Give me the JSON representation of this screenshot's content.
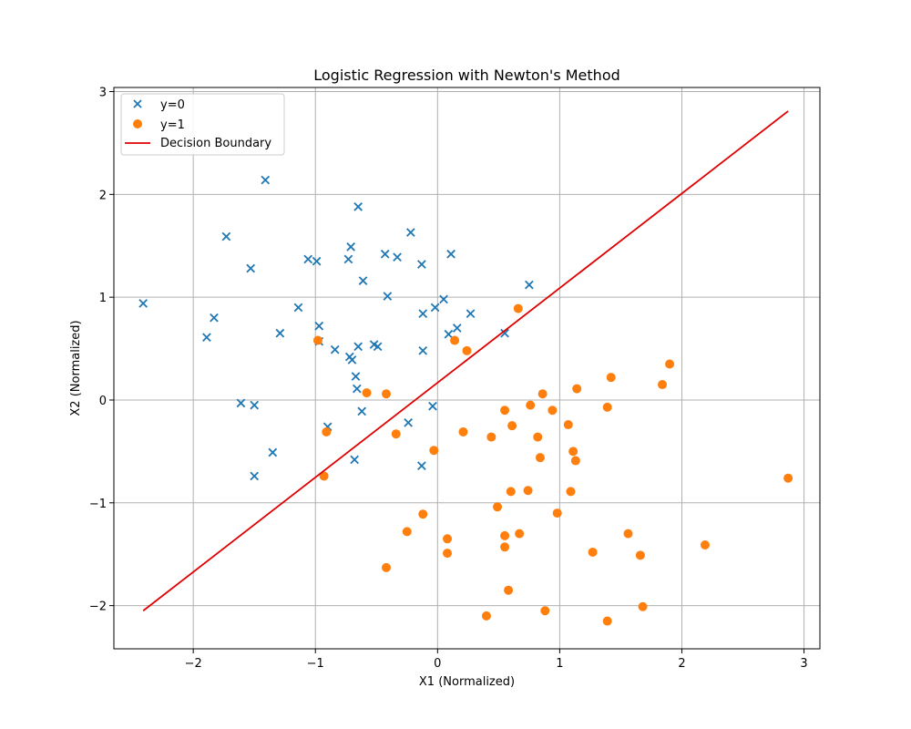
{
  "chart_data": {
    "type": "scatter",
    "title": "Logistic Regression with Newton's Method",
    "xlabel": "X1 (Normalized)",
    "ylabel": "X2 (Normalized)",
    "xlim": [
      -2.65,
      3.13
    ],
    "ylim": [
      -2.42,
      3.04
    ],
    "xticks": [
      -2,
      -1,
      0,
      1,
      2,
      3
    ],
    "xtick_labels": [
      "−2",
      "−1",
      "0",
      "1",
      "2",
      "3"
    ],
    "yticks": [
      -2,
      -1,
      0,
      1,
      2,
      3
    ],
    "ytick_labels": [
      "−2",
      "−1",
      "0",
      "1",
      "2",
      "3"
    ],
    "grid": true,
    "legend_position": "top-left",
    "series": [
      {
        "name": "y=0",
        "marker": "x",
        "color": "#1f77b4",
        "points": [
          [
            -2.41,
            0.94
          ],
          [
            -1.89,
            0.61
          ],
          [
            -1.83,
            0.8
          ],
          [
            -1.73,
            1.59
          ],
          [
            -1.61,
            -0.03
          ],
          [
            -1.53,
            1.28
          ],
          [
            -1.5,
            -0.05
          ],
          [
            -1.5,
            -0.74
          ],
          [
            -1.41,
            2.14
          ],
          [
            -1.35,
            -0.51
          ],
          [
            -1.29,
            0.65
          ],
          [
            -1.14,
            0.9
          ],
          [
            -1.06,
            1.37
          ],
          [
            -0.99,
            1.35
          ],
          [
            -0.97,
            0.72
          ],
          [
            -0.97,
            0.57
          ],
          [
            -0.9,
            -0.26
          ],
          [
            -0.84,
            0.49
          ],
          [
            -0.73,
            1.37
          ],
          [
            -0.72,
            0.42
          ],
          [
            -0.71,
            1.49
          ],
          [
            -0.7,
            0.39
          ],
          [
            -0.68,
            -0.58
          ],
          [
            -0.67,
            0.23
          ],
          [
            -0.66,
            0.11
          ],
          [
            -0.65,
            1.88
          ],
          [
            -0.65,
            0.52
          ],
          [
            -0.62,
            -0.11
          ],
          [
            -0.61,
            1.16
          ],
          [
            -0.52,
            0.54
          ],
          [
            -0.49,
            0.52
          ],
          [
            -0.43,
            1.42
          ],
          [
            -0.41,
            1.01
          ],
          [
            -0.33,
            1.39
          ],
          [
            -0.24,
            -0.22
          ],
          [
            -0.22,
            1.63
          ],
          [
            -0.13,
            1.32
          ],
          [
            -0.13,
            -0.64
          ],
          [
            -0.12,
            0.84
          ],
          [
            -0.12,
            0.48
          ],
          [
            -0.04,
            -0.06
          ],
          [
            -0.02,
            0.9
          ],
          [
            0.05,
            0.98
          ],
          [
            0.09,
            0.64
          ],
          [
            0.11,
            1.42
          ],
          [
            0.16,
            0.7
          ],
          [
            0.27,
            0.84
          ],
          [
            0.55,
            0.65
          ],
          [
            0.75,
            1.12
          ]
        ]
      },
      {
        "name": "y=1",
        "marker": "o",
        "color": "#ff7f0e",
        "points": [
          [
            -0.98,
            0.58
          ],
          [
            -0.93,
            -0.74
          ],
          [
            -0.91,
            -0.31
          ],
          [
            -0.58,
            0.07
          ],
          [
            -0.42,
            0.06
          ],
          [
            -0.42,
            -1.63
          ],
          [
            -0.34,
            -0.33
          ],
          [
            -0.25,
            -1.28
          ],
          [
            -0.12,
            -1.11
          ],
          [
            -0.03,
            -0.49
          ],
          [
            0.08,
            -1.35
          ],
          [
            0.08,
            -1.49
          ],
          [
            0.14,
            0.58
          ],
          [
            0.21,
            -0.31
          ],
          [
            0.24,
            0.48
          ],
          [
            0.4,
            -2.1
          ],
          [
            0.44,
            -0.36
          ],
          [
            0.49,
            -1.04
          ],
          [
            0.55,
            -0.1
          ],
          [
            0.55,
            -1.32
          ],
          [
            0.55,
            -1.43
          ],
          [
            0.58,
            -1.85
          ],
          [
            0.6,
            -0.89
          ],
          [
            0.61,
            -0.25
          ],
          [
            0.66,
            0.89
          ],
          [
            0.67,
            -1.3
          ],
          [
            0.74,
            -0.88
          ],
          [
            0.76,
            -0.05
          ],
          [
            0.82,
            -0.36
          ],
          [
            0.84,
            -0.56
          ],
          [
            0.86,
            0.06
          ],
          [
            0.88,
            -2.05
          ],
          [
            0.94,
            -0.1
          ],
          [
            0.98,
            -1.1
          ],
          [
            1.07,
            -0.24
          ],
          [
            1.09,
            -0.89
          ],
          [
            1.11,
            -0.5
          ],
          [
            1.13,
            -0.59
          ],
          [
            1.14,
            0.11
          ],
          [
            1.27,
            -1.48
          ],
          [
            1.39,
            -0.07
          ],
          [
            1.39,
            -2.15
          ],
          [
            1.42,
            0.22
          ],
          [
            1.56,
            -1.3
          ],
          [
            1.66,
            -1.51
          ],
          [
            1.68,
            -2.01
          ],
          [
            1.84,
            0.15
          ],
          [
            1.9,
            0.35
          ],
          [
            2.19,
            -1.41
          ],
          [
            2.87,
            -0.76
          ]
        ]
      },
      {
        "name": "Decision Boundary",
        "type": "line",
        "color": "#e00000",
        "x": [
          -2.41,
          2.87
        ],
        "y": [
          -2.05,
          2.81
        ]
      }
    ]
  }
}
